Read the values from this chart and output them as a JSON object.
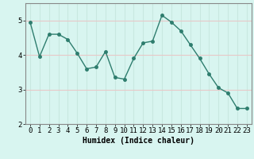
{
  "xlabel": "Humidex (Indice chaleur)",
  "x": [
    0,
    1,
    2,
    3,
    4,
    5,
    6,
    7,
    8,
    9,
    10,
    11,
    12,
    13,
    14,
    15,
    16,
    17,
    18,
    19,
    20,
    21,
    22,
    23
  ],
  "y": [
    4.95,
    3.95,
    4.6,
    4.6,
    4.45,
    4.05,
    3.6,
    3.65,
    4.1,
    3.35,
    3.3,
    3.9,
    4.35,
    4.4,
    5.15,
    4.95,
    4.7,
    4.3,
    3.9,
    3.45,
    3.05,
    2.9,
    2.45,
    2.45
  ],
  "line_color": "#2e7d6e",
  "marker_size": 2.5,
  "line_width": 1.0,
  "bg_color": "#d8f5f0",
  "grid_v_color": "#c8e8e0",
  "grid_h_color": "#e8c8c8",
  "ylim": [
    2.0,
    5.5
  ],
  "yticks": [
    2,
    3,
    4,
    5
  ],
  "xlim": [
    -0.5,
    23.5
  ],
  "xticks": [
    0,
    1,
    2,
    3,
    4,
    5,
    6,
    7,
    8,
    9,
    10,
    11,
    12,
    13,
    14,
    15,
    16,
    17,
    18,
    19,
    20,
    21,
    22,
    23
  ],
  "xlabel_fontsize": 7,
  "tick_fontsize": 6.5,
  "spine_color": "#888888"
}
